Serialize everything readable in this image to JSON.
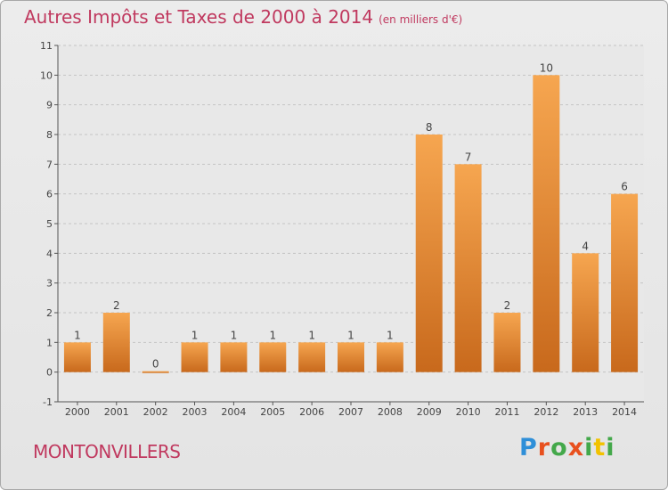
{
  "header": {
    "title": "Autres Impôts et Taxes de 2000 à 2014",
    "subtitle": "(en milliers d'€)"
  },
  "footer": {
    "location": "MONTONVILLERS",
    "logo_text": "Proxiti"
  },
  "colors": {
    "bar_top": "#f6a650",
    "bar_bottom": "#c8691c",
    "title": "#c0395f",
    "logo": [
      "#2f8fd8",
      "#e8501e",
      "#43a84a",
      "#e8501e",
      "#43a84a",
      "#f2c200",
      "#43a84a"
    ]
  },
  "chart_data": {
    "type": "bar",
    "title": "Autres Impôts et Taxes de 2000 à 2014",
    "subtitle": "(en milliers d'€)",
    "categories": [
      "2000",
      "2001",
      "2002",
      "2003",
      "2004",
      "2005",
      "2006",
      "2007",
      "2008",
      "2009",
      "2010",
      "2011",
      "2012",
      "2013",
      "2014"
    ],
    "values": [
      1,
      2,
      0,
      1,
      1,
      1,
      1,
      1,
      1,
      8,
      7,
      2,
      10,
      4,
      6
    ],
    "data_labels": [
      "1",
      "2",
      "0",
      "1",
      "1",
      "1",
      "1",
      "1",
      "1",
      "8",
      "7",
      "2",
      "10",
      "4",
      "6"
    ],
    "ylim": [
      -1,
      11
    ],
    "yticks": [
      -1,
      0,
      1,
      2,
      3,
      4,
      5,
      6,
      7,
      8,
      9,
      10,
      11
    ],
    "grid": "dashed horizontal",
    "legend": "none"
  }
}
